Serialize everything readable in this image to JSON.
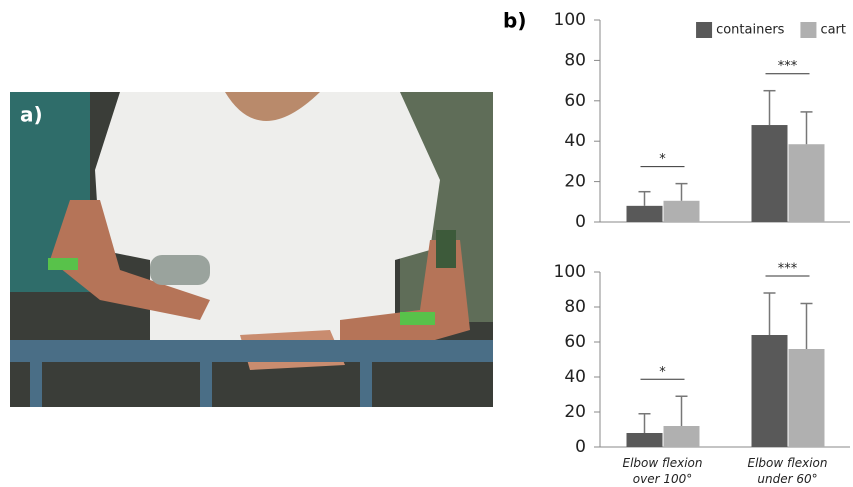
{
  "panel_labels": [
    "a)",
    "b)"
  ],
  "chart_data": [
    {
      "type": "bar",
      "categories": [
        null,
        null
      ],
      "series": [
        {
          "name": "containers",
          "color": "#595959",
          "values": [
            8,
            48
          ],
          "errors": [
            7,
            17
          ]
        },
        {
          "name": "cart",
          "color": "#b0b0b0",
          "values": [
            10.5,
            38.5
          ],
          "errors": [
            8.5,
            16
          ]
        }
      ],
      "significance": [
        "*",
        "***"
      ],
      "ylim": [
        0,
        100
      ],
      "yticks": [
        0,
        20,
        40,
        60,
        80,
        100
      ],
      "legend": "top-right"
    },
    {
      "type": "bar",
      "categories": [
        "Elbow flexion over 100°",
        "Elbow flexion under 60°"
      ],
      "series": [
        {
          "color": "#595959",
          "values": [
            8,
            64
          ],
          "errors": [
            11,
            24
          ]
        },
        {
          "color": "#b0b0b0",
          "values": [
            12,
            56
          ],
          "errors": [
            17,
            26
          ]
        }
      ],
      "significance": [
        "*",
        "***"
      ],
      "ylim": [
        0,
        100
      ],
      "yticks": [
        0,
        20,
        40,
        60,
        80,
        100
      ]
    }
  ]
}
